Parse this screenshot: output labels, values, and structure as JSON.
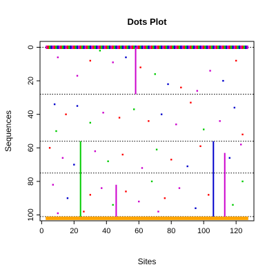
{
  "chart_data": {
    "type": "scatter",
    "title": "Dots Plot",
    "xlabel": "Sites",
    "ylabel": "Sequences",
    "xlim": [
      -1,
      131
    ],
    "ylim": [
      103.5,
      -3.5
    ],
    "y_reversed": true,
    "x_ticks": [
      0,
      20,
      40,
      60,
      80,
      100,
      120
    ],
    "y_ticks": [
      0,
      20,
      40,
      60,
      80,
      100
    ],
    "hlines": [
      {
        "y": 0,
        "style": "dotted",
        "color": "#000000"
      },
      {
        "y": 28,
        "style": "dotted",
        "color": "#000000"
      },
      {
        "y": 56,
        "style": "dotted",
        "color": "#000000"
      },
      {
        "y": 75,
        "style": "dotted",
        "color": "#000000"
      },
      {
        "y": 101,
        "style": "dotted",
        "color": "#000000"
      }
    ],
    "vlines": [
      {
        "x": 24,
        "y0": 56,
        "y1": 101,
        "color": "#00cc00"
      },
      {
        "x": 46,
        "y0": 82,
        "y1": 101,
        "color": "#cc00cc"
      },
      {
        "x": 58,
        "y0": 0,
        "y1": 28,
        "color": "#cc00cc"
      },
      {
        "x": 106,
        "y0": 56,
        "y1": 101,
        "color": "#0000cc"
      },
      {
        "x": 113,
        "y0": 63,
        "y1": 101,
        "color": "#cc00cc"
      }
    ],
    "bands": [
      {
        "y": 0,
        "x_start": 3,
        "x_end": 127,
        "style": "multicolor"
      },
      {
        "y": 102,
        "x_start": 3,
        "x_end": 127,
        "color": "#ffa500"
      }
    ],
    "palette": [
      "#ff0000",
      "#00cc00",
      "#0000cc",
      "#cc00cc"
    ],
    "points": [
      {
        "x": 10,
        "y": 6,
        "color": "#cc00cc"
      },
      {
        "x": 22,
        "y": 17,
        "color": "#cc00cc"
      },
      {
        "x": 30,
        "y": 8,
        "color": "#ff0000"
      },
      {
        "x": 36,
        "y": 2,
        "color": "#00cc00"
      },
      {
        "x": 44,
        "y": 9,
        "color": "#cc00cc"
      },
      {
        "x": 52,
        "y": 6,
        "color": "#0000cc"
      },
      {
        "x": 61,
        "y": 12,
        "color": "#ff0000"
      },
      {
        "x": 70,
        "y": 16,
        "color": "#00cc00"
      },
      {
        "x": 78,
        "y": 22,
        "color": "#0000cc"
      },
      {
        "x": 86,
        "y": 24,
        "color": "#ff0000"
      },
      {
        "x": 96,
        "y": 26,
        "color": "#cc00cc"
      },
      {
        "x": 104,
        "y": 14,
        "color": "#cc00cc"
      },
      {
        "x": 112,
        "y": 20,
        "color": "#0000cc"
      },
      {
        "x": 120,
        "y": 8,
        "color": "#ff0000"
      },
      {
        "x": 8,
        "y": 34,
        "color": "#0000cc"
      },
      {
        "x": 15,
        "y": 40,
        "color": "#ff0000"
      },
      {
        "x": 22,
        "y": 35,
        "color": "#0000cc"
      },
      {
        "x": 30,
        "y": 45,
        "color": "#00cc00"
      },
      {
        "x": 38,
        "y": 39,
        "color": "#cc00cc"
      },
      {
        "x": 48,
        "y": 42,
        "color": "#ff0000"
      },
      {
        "x": 57,
        "y": 37,
        "color": "#00cc00"
      },
      {
        "x": 66,
        "y": 44,
        "color": "#ff0000"
      },
      {
        "x": 74,
        "y": 40,
        "color": "#0000cc"
      },
      {
        "x": 83,
        "y": 46,
        "color": "#cc00cc"
      },
      {
        "x": 92,
        "y": 33,
        "color": "#ff0000"
      },
      {
        "x": 100,
        "y": 49,
        "color": "#00cc00"
      },
      {
        "x": 110,
        "y": 44,
        "color": "#cc00cc"
      },
      {
        "x": 119,
        "y": 36,
        "color": "#0000cc"
      },
      {
        "x": 124,
        "y": 52,
        "color": "#ff0000"
      },
      {
        "x": 9,
        "y": 50,
        "color": "#00cc00"
      },
      {
        "x": 5,
        "y": 60,
        "color": "#ff0000"
      },
      {
        "x": 13,
        "y": 66,
        "color": "#cc00cc"
      },
      {
        "x": 20,
        "y": 70,
        "color": "#0000cc"
      },
      {
        "x": 33,
        "y": 62,
        "color": "#cc00cc"
      },
      {
        "x": 41,
        "y": 68,
        "color": "#00cc00"
      },
      {
        "x": 50,
        "y": 64,
        "color": "#ff0000"
      },
      {
        "x": 62,
        "y": 72,
        "color": "#cc00cc"
      },
      {
        "x": 71,
        "y": 61,
        "color": "#00cc00"
      },
      {
        "x": 80,
        "y": 67,
        "color": "#ff0000"
      },
      {
        "x": 90,
        "y": 71,
        "color": "#0000cc"
      },
      {
        "x": 98,
        "y": 59,
        "color": "#ff0000"
      },
      {
        "x": 116,
        "y": 66,
        "color": "#0000cc"
      },
      {
        "x": 123,
        "y": 58,
        "color": "#cc00cc"
      },
      {
        "x": 7,
        "y": 82,
        "color": "#cc00cc"
      },
      {
        "x": 16,
        "y": 90,
        "color": "#0000cc"
      },
      {
        "x": 30,
        "y": 88,
        "color": "#ff0000"
      },
      {
        "x": 37,
        "y": 84,
        "color": "#cc00cc"
      },
      {
        "x": 44,
        "y": 94,
        "color": "#00cc00"
      },
      {
        "x": 52,
        "y": 86,
        "color": "#ff0000"
      },
      {
        "x": 60,
        "y": 92,
        "color": "#cc00cc"
      },
      {
        "x": 68,
        "y": 80,
        "color": "#00cc00"
      },
      {
        "x": 76,
        "y": 90,
        "color": "#ff0000"
      },
      {
        "x": 85,
        "y": 84,
        "color": "#cc00cc"
      },
      {
        "x": 95,
        "y": 96,
        "color": "#0000cc"
      },
      {
        "x": 103,
        "y": 88,
        "color": "#ff0000"
      },
      {
        "x": 118,
        "y": 94,
        "color": "#00cc00"
      },
      {
        "x": 124,
        "y": 80,
        "color": "#00cc00"
      },
      {
        "x": 26,
        "y": 98,
        "color": "#ff0000"
      },
      {
        "x": 10,
        "y": 99,
        "color": "#cc00cc"
      },
      {
        "x": 72,
        "y": 98,
        "color": "#cc00cc"
      }
    ]
  }
}
